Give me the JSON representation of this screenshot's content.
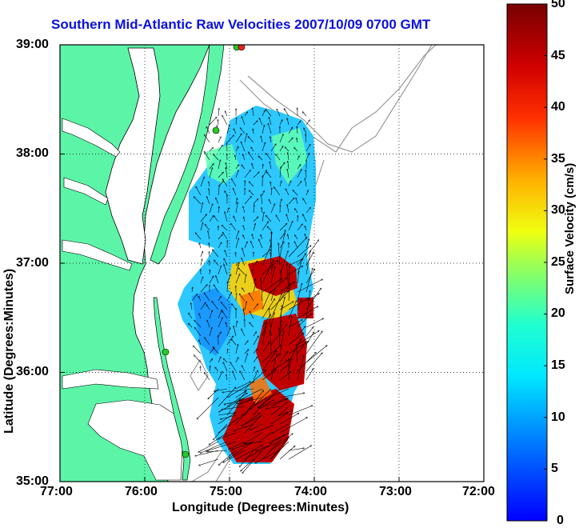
{
  "title": "Southern Mid-Atlantic Raw Velocities 2007/10/09 0700 GMT",
  "axes": {
    "xlabel": "Longitude (Degrees:Minutes)",
    "ylabel": "Latitude (Degrees:Minutes)",
    "x_ticks": [
      "77:00",
      "76:00",
      "75:00",
      "74:00",
      "73:00",
      "72:00"
    ],
    "y_ticks": [
      "39:00",
      "38:00",
      "37:00",
      "36:00",
      "35:00"
    ],
    "x_range_deg_west": [
      77,
      72
    ],
    "y_range_deg_north": [
      35,
      39
    ],
    "grid": "dotted"
  },
  "colorbar": {
    "label": "Surface Velocity (cm/s)",
    "ticks": [
      "50",
      "45",
      "40",
      "35",
      "30",
      "25",
      "20",
      "15",
      "10",
      "5",
      "0"
    ],
    "range": [
      0,
      50
    ],
    "colormap": "jet"
  },
  "colors": {
    "land": "#5cf5a8",
    "water": "#ffffff",
    "title": "#0a10e0",
    "bathymetry": "#9a9a9a",
    "station_marker": "#22cc22",
    "station_marker_alt": "#ee2222"
  }
}
